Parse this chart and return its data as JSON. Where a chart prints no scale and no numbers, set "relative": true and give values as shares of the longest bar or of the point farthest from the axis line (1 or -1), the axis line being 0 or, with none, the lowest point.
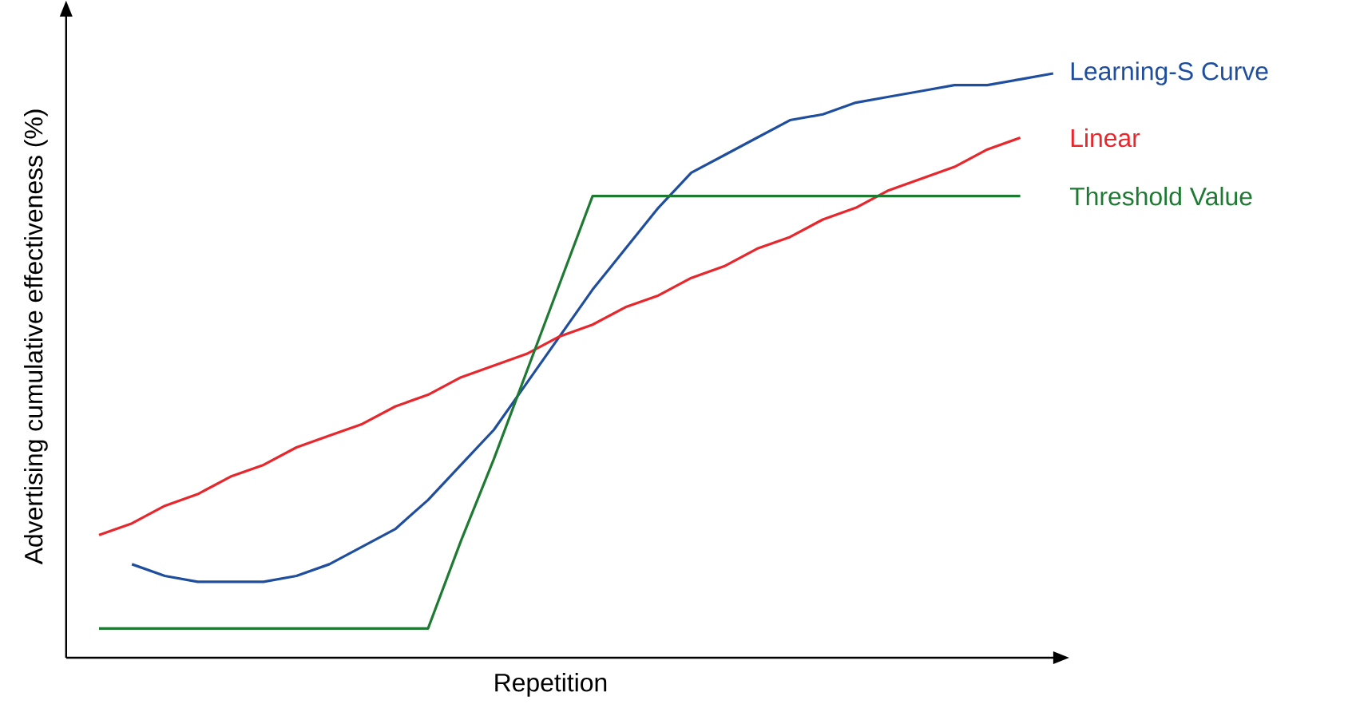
{
  "chart_data": {
    "type": "line",
    "xlabel": "Repetition",
    "ylabel": "Advertising cumulative effectiveness (%)",
    "relative": true,
    "categories": [
      null,
      null,
      null,
      null,
      null,
      null,
      null,
      null,
      null,
      null,
      null,
      null,
      null,
      null,
      null,
      null,
      null,
      null,
      null,
      null,
      null,
      null,
      null,
      null,
      null,
      null,
      null,
      null,
      null,
      null
    ],
    "series": [
      {
        "name": "Learning-S Curve",
        "color": "#1f4e9e",
        "values": [
          null,
          0.16,
          0.14,
          0.13,
          0.13,
          0.13,
          0.14,
          0.16,
          0.19,
          0.22,
          0.27,
          0.33,
          0.39,
          0.47,
          0.55,
          0.63,
          0.7,
          0.77,
          0.83,
          0.86,
          0.89,
          0.92,
          0.93,
          0.95,
          0.96,
          0.97,
          0.98,
          0.98,
          0.99,
          1
        ]
      },
      {
        "name": "Linear",
        "color": "#e8262b",
        "values": [
          0.21,
          0.23,
          0.26,
          0.28,
          0.31,
          0.33,
          0.36,
          0.38,
          0.4,
          0.43,
          0.45,
          0.48,
          0.5,
          0.52,
          0.55,
          0.57,
          0.6,
          0.62,
          0.65,
          0.67,
          0.7,
          0.72,
          0.75,
          0.77,
          0.8,
          0.82,
          0.84,
          0.87,
          0.89,
          null
        ]
      },
      {
        "name": "Threshold Value",
        "color": "#1e7a32",
        "values": [
          0.05,
          0.05,
          0.05,
          0.05,
          0.05,
          0.05,
          0.05,
          0.05,
          0.05,
          0.05,
          0.05,
          0.2,
          0.34,
          0.49,
          0.64,
          0.79,
          0.79,
          0.79,
          0.79,
          0.79,
          0.79,
          0.79,
          0.79,
          0.79,
          0.79,
          0.79,
          0.79,
          0.79,
          0.79,
          null
        ]
      }
    ]
  }
}
